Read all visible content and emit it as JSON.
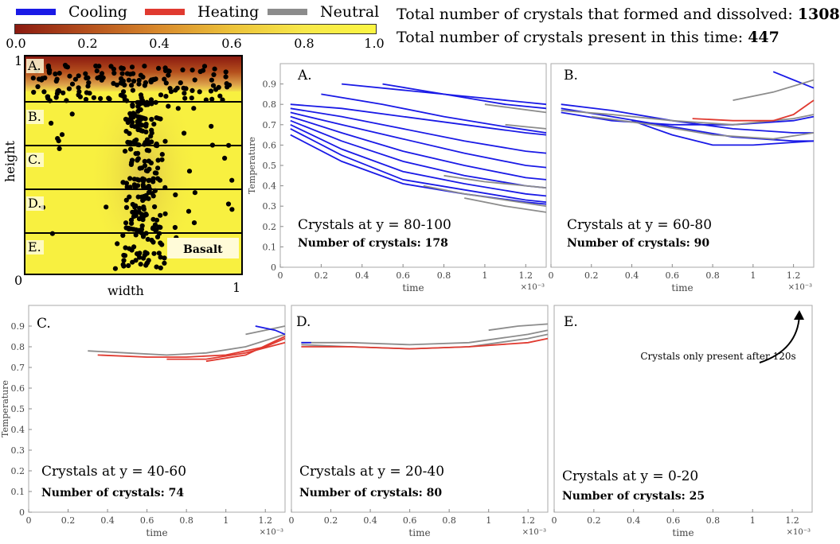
{
  "legend": {
    "items": [
      {
        "label": "Cooling",
        "color": "#1a1ae6"
      },
      {
        "label": "Heating",
        "color": "#e03a30"
      },
      {
        "label": "Neutral",
        "color": "#8c8c8c"
      }
    ]
  },
  "colorbar": {
    "ticks": [
      "0.0",
      "0.2",
      "0.4",
      "0.6",
      "0.8",
      "1.0"
    ],
    "colors": [
      "#8b1a10",
      "#b5501d",
      "#d98a2c",
      "#ecc23a",
      "#f7e84a",
      "#fbf542"
    ]
  },
  "totals": {
    "formed_dissolved_label": "Total number of crystals that formed and dissolved:",
    "formed_dissolved_value": "1308",
    "present_label": "Total number of crystals present in this time:",
    "present_value": "447"
  },
  "domain": {
    "y_label": "height",
    "x_label": "width",
    "y_top": "1",
    "y_bottom": "0",
    "x_right": "1",
    "regions": [
      "A.",
      "B.",
      "C.",
      "D.",
      "E."
    ],
    "basalt_label": "Basalt"
  },
  "chart_data": [
    {
      "type": "line",
      "panel": "A.",
      "title": "Crystals at y = 80-100",
      "count_label": "Number of crystals: 178",
      "xlabel": "time",
      "ylabel": "Temperature",
      "x_multiplier": "×10⁻³",
      "xlim": [
        0,
        1.3
      ],
      "ylim": [
        0,
        1.0
      ],
      "x_ticks": [
        "0",
        "0.2",
        "0.4",
        "0.6",
        "0.8",
        "1",
        "1.2"
      ],
      "y_ticks": [
        "0",
        "0.1",
        "0.2",
        "0.3",
        "0.4",
        "0.5",
        "0.6",
        "0.7",
        "0.8",
        "0.9"
      ],
      "series": [
        {
          "type": "cooling",
          "x": [
            0.05,
            0.3,
            0.6,
            0.9,
            1.2,
            1.3
          ],
          "y": [
            0.8,
            0.78,
            0.74,
            0.7,
            0.66,
            0.65
          ]
        },
        {
          "type": "cooling",
          "x": [
            0.05,
            0.3,
            0.6,
            0.9,
            1.2,
            1.3
          ],
          "y": [
            0.78,
            0.74,
            0.68,
            0.62,
            0.57,
            0.56
          ]
        },
        {
          "type": "cooling",
          "x": [
            0.05,
            0.3,
            0.6,
            0.9,
            1.2,
            1.3
          ],
          "y": [
            0.76,
            0.7,
            0.63,
            0.56,
            0.5,
            0.49
          ]
        },
        {
          "type": "cooling",
          "x": [
            0.05,
            0.3,
            0.6,
            0.9,
            1.2,
            1.3
          ],
          "y": [
            0.74,
            0.66,
            0.57,
            0.5,
            0.44,
            0.43
          ]
        },
        {
          "type": "cooling",
          "x": [
            0.05,
            0.3,
            0.6,
            0.9,
            1.2,
            1.3
          ],
          "y": [
            0.72,
            0.62,
            0.52,
            0.45,
            0.4,
            0.39
          ]
        },
        {
          "type": "cooling",
          "x": [
            0.05,
            0.3,
            0.6,
            0.9,
            1.2,
            1.3
          ],
          "y": [
            0.7,
            0.58,
            0.47,
            0.41,
            0.36,
            0.35
          ]
        },
        {
          "type": "cooling",
          "x": [
            0.05,
            0.3,
            0.6,
            0.9,
            1.2,
            1.3
          ],
          "y": [
            0.68,
            0.55,
            0.43,
            0.38,
            0.33,
            0.32
          ]
        },
        {
          "type": "cooling",
          "x": [
            0.05,
            0.3,
            0.6,
            0.9,
            1.2,
            1.3
          ],
          "y": [
            0.65,
            0.52,
            0.41,
            0.36,
            0.32,
            0.31
          ]
        },
        {
          "type": "cooling",
          "x": [
            0.3,
            0.6,
            0.9,
            1.2,
            1.3
          ],
          "y": [
            0.9,
            0.87,
            0.84,
            0.81,
            0.8
          ]
        },
        {
          "type": "cooling",
          "x": [
            0.5,
            0.8,
            1.1,
            1.3
          ],
          "y": [
            0.9,
            0.85,
            0.8,
            0.78
          ]
        },
        {
          "type": "cooling",
          "x": [
            0.2,
            0.5,
            0.8,
            1.1,
            1.3
          ],
          "y": [
            0.85,
            0.8,
            0.74,
            0.69,
            0.66
          ]
        },
        {
          "type": "neutral",
          "x": [
            0.7,
            0.9,
            1.1,
            1.3
          ],
          "y": [
            0.4,
            0.36,
            0.33,
            0.3
          ]
        },
        {
          "type": "neutral",
          "x": [
            0.9,
            1.1,
            1.3
          ],
          "y": [
            0.34,
            0.3,
            0.27
          ]
        },
        {
          "type": "neutral",
          "x": [
            1.0,
            1.15,
            1.3
          ],
          "y": [
            0.8,
            0.78,
            0.76
          ]
        },
        {
          "type": "neutral",
          "x": [
            1.1,
            1.2,
            1.3
          ],
          "y": [
            0.7,
            0.69,
            0.68
          ]
        },
        {
          "type": "neutral",
          "x": [
            0.8,
            1.0,
            1.2,
            1.3
          ],
          "y": [
            0.45,
            0.42,
            0.4,
            0.39
          ]
        }
      ]
    },
    {
      "type": "line",
      "panel": "B.",
      "title": "Crystals at y = 60-80",
      "count_label": "Number of crystals: 90",
      "xlabel": "time",
      "ylabel": "",
      "x_multiplier": "×10⁻³",
      "xlim": [
        0,
        1.3
      ],
      "ylim": [
        0,
        1.0
      ],
      "x_ticks": [
        "0",
        "0.2",
        "0.4",
        "0.6",
        "0.8",
        "1",
        "1.2"
      ],
      "y_ticks": [],
      "series": [
        {
          "type": "cooling",
          "x": [
            0.05,
            0.3,
            0.6,
            0.9,
            1.2,
            1.3
          ],
          "y": [
            0.8,
            0.77,
            0.72,
            0.68,
            0.66,
            0.66
          ]
        },
        {
          "type": "cooling",
          "x": [
            0.05,
            0.3,
            0.6,
            0.9,
            1.2,
            1.3
          ],
          "y": [
            0.78,
            0.74,
            0.69,
            0.64,
            0.62,
            0.62
          ]
        },
        {
          "type": "cooling",
          "x": [
            0.05,
            0.3,
            0.6,
            0.9,
            1.2,
            1.3
          ],
          "y": [
            0.76,
            0.72,
            0.7,
            0.7,
            0.72,
            0.74
          ]
        },
        {
          "type": "cooling",
          "x": [
            0.4,
            0.6,
            0.8,
            1.0,
            1.3
          ],
          "y": [
            0.72,
            0.65,
            0.6,
            0.6,
            0.62
          ]
        },
        {
          "type": "cooling",
          "x": [
            1.1,
            1.2,
            1.3
          ],
          "y": [
            0.96,
            0.92,
            0.88
          ]
        },
        {
          "type": "neutral",
          "x": [
            0.05,
            0.3,
            0.6,
            0.9,
            1.2,
            1.3
          ],
          "y": [
            0.77,
            0.75,
            0.72,
            0.7,
            0.73,
            0.75
          ]
        },
        {
          "type": "neutral",
          "x": [
            0.2,
            0.5,
            0.8,
            1.1,
            1.3
          ],
          "y": [
            0.74,
            0.7,
            0.65,
            0.63,
            0.66
          ]
        },
        {
          "type": "neutral",
          "x": [
            0.9,
            1.1,
            1.3
          ],
          "y": [
            0.82,
            0.86,
            0.92
          ]
        },
        {
          "type": "heating",
          "x": [
            0.7,
            0.9,
            1.1,
            1.2,
            1.3
          ],
          "y": [
            0.73,
            0.72,
            0.72,
            0.75,
            0.82
          ]
        }
      ]
    },
    {
      "type": "line",
      "panel": "C.",
      "title": "Crystals at y = 40-60",
      "count_label": "Number of crystals: 74",
      "xlabel": "time",
      "ylabel": "Temperature",
      "x_multiplier": "×10⁻³",
      "xlim": [
        0,
        1.3
      ],
      "ylim": [
        0,
        1.0
      ],
      "x_ticks": [
        "0",
        "0.2",
        "0.4",
        "0.6",
        "0.8",
        "1",
        "1.2"
      ],
      "y_ticks": [
        "0",
        "0.1",
        "0.2",
        "0.3",
        "0.4",
        "0.5",
        "0.6",
        "0.7",
        "0.8",
        "0.9"
      ],
      "series": [
        {
          "type": "neutral",
          "x": [
            0.3,
            0.5,
            0.7,
            0.9,
            1.1,
            1.3
          ],
          "y": [
            0.78,
            0.77,
            0.76,
            0.77,
            0.8,
            0.86
          ]
        },
        {
          "type": "heating",
          "x": [
            0.35,
            0.6,
            0.8,
            1.0,
            1.2,
            1.3
          ],
          "y": [
            0.76,
            0.75,
            0.75,
            0.76,
            0.8,
            0.84
          ]
        },
        {
          "type": "heating",
          "x": [
            0.7,
            0.9,
            1.1,
            1.3
          ],
          "y": [
            0.74,
            0.74,
            0.77,
            0.82
          ]
        },
        {
          "type": "heating",
          "x": [
            0.9,
            1.1,
            1.3
          ],
          "y": [
            0.73,
            0.76,
            0.85
          ]
        },
        {
          "type": "neutral",
          "x": [
            1.1,
            1.2,
            1.3
          ],
          "y": [
            0.86,
            0.88,
            0.9
          ]
        },
        {
          "type": "cooling",
          "x": [
            1.15,
            1.25,
            1.3
          ],
          "y": [
            0.9,
            0.88,
            0.86
          ]
        }
      ]
    },
    {
      "type": "line",
      "panel": "D.",
      "title": "Crystals at y = 20-40",
      "count_label": "Number of crystals: 80",
      "xlabel": "time",
      "ylabel": "",
      "x_multiplier": "×10⁻³",
      "xlim": [
        0,
        1.3
      ],
      "ylim": [
        0,
        1.0
      ],
      "x_ticks": [
        "0",
        "0.2",
        "0.4",
        "0.6",
        "0.8",
        "1",
        "1.2"
      ],
      "y_ticks": [],
      "series": [
        {
          "type": "neutral",
          "x": [
            0.05,
            0.3,
            0.6,
            0.9,
            1.2,
            1.3
          ],
          "y": [
            0.82,
            0.82,
            0.81,
            0.82,
            0.86,
            0.88
          ]
        },
        {
          "type": "neutral",
          "x": [
            0.05,
            0.3,
            0.6,
            0.9,
            1.2,
            1.3
          ],
          "y": [
            0.81,
            0.8,
            0.79,
            0.8,
            0.84,
            0.86
          ]
        },
        {
          "type": "heating",
          "x": [
            0.05,
            0.3,
            0.6,
            0.9,
            1.2,
            1.3
          ],
          "y": [
            0.8,
            0.8,
            0.79,
            0.8,
            0.82,
            0.84
          ]
        },
        {
          "type": "neutral",
          "x": [
            1.0,
            1.15,
            1.3
          ],
          "y": [
            0.88,
            0.9,
            0.91
          ]
        },
        {
          "type": "cooling",
          "x": [
            0.05,
            0.1
          ],
          "y": [
            0.82,
            0.82
          ]
        }
      ]
    },
    {
      "type": "line",
      "panel": "E.",
      "title": "Crystals at y = 0-20",
      "count_label": "Number of crystals: 25",
      "xlabel": "time",
      "ylabel": "",
      "x_multiplier": "×10⁻³",
      "xlim": [
        0,
        1.3
      ],
      "ylim": [
        0,
        1.0
      ],
      "x_ticks": [
        "0",
        "0.2",
        "0.4",
        "0.6",
        "0.8",
        "1",
        "1.2"
      ],
      "y_ticks": [],
      "annotation": "Crystals only present after 120s",
      "series": []
    }
  ]
}
